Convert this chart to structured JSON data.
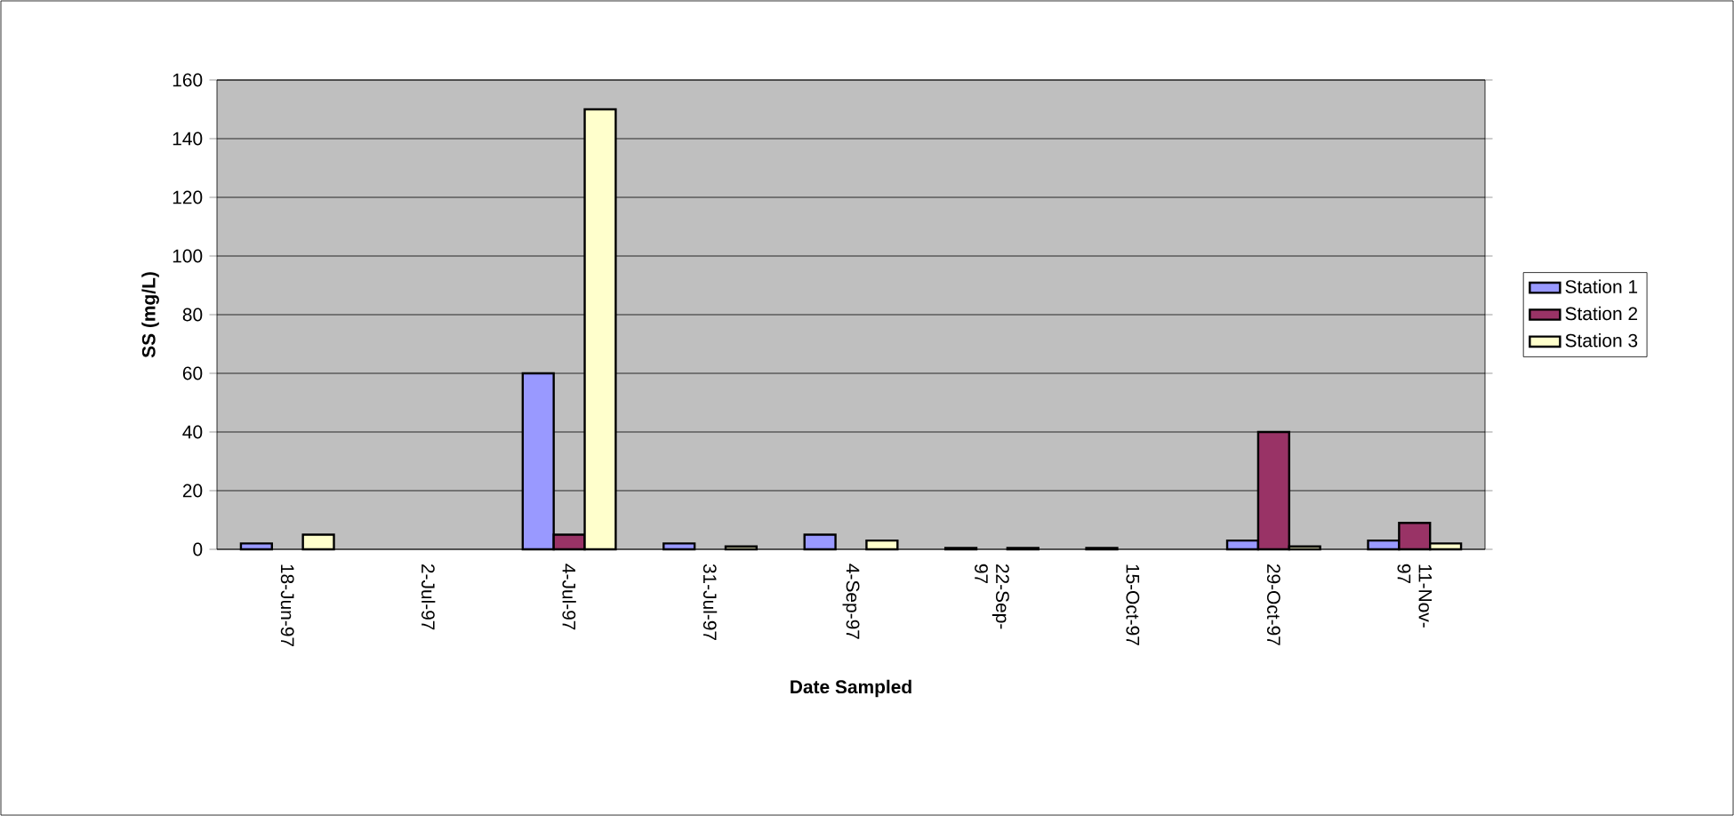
{
  "chart_data": {
    "type": "bar",
    "xlabel": "Date Sampled",
    "ylabel": "SS (mg/L)",
    "categories": [
      "18-Jun-97",
      "2-Jul-97",
      "4-Jul-97",
      "31-Jul-97",
      "4-Sep-97",
      "22-Sep-97",
      "15-Oct-97",
      "29-Oct-97",
      "11-Nov-97"
    ],
    "series": [
      {
        "name": "Station 1",
        "color": "#9999ff",
        "values": [
          2,
          null,
          60,
          2,
          5,
          0.5,
          0.5,
          3,
          3
        ]
      },
      {
        "name": "Station 2",
        "color": "#993366",
        "values": [
          null,
          null,
          5,
          null,
          null,
          null,
          null,
          40,
          9
        ]
      },
      {
        "name": "Station 3",
        "color": "#ffffcc",
        "values": [
          5,
          null,
          150,
          1,
          3,
          0.5,
          null,
          1,
          2
        ]
      }
    ],
    "ylim": [
      0,
      160
    ],
    "yticks": [
      0,
      20,
      40,
      60,
      80,
      100,
      120,
      140,
      160
    ],
    "grid": "y",
    "legend": "right"
  }
}
